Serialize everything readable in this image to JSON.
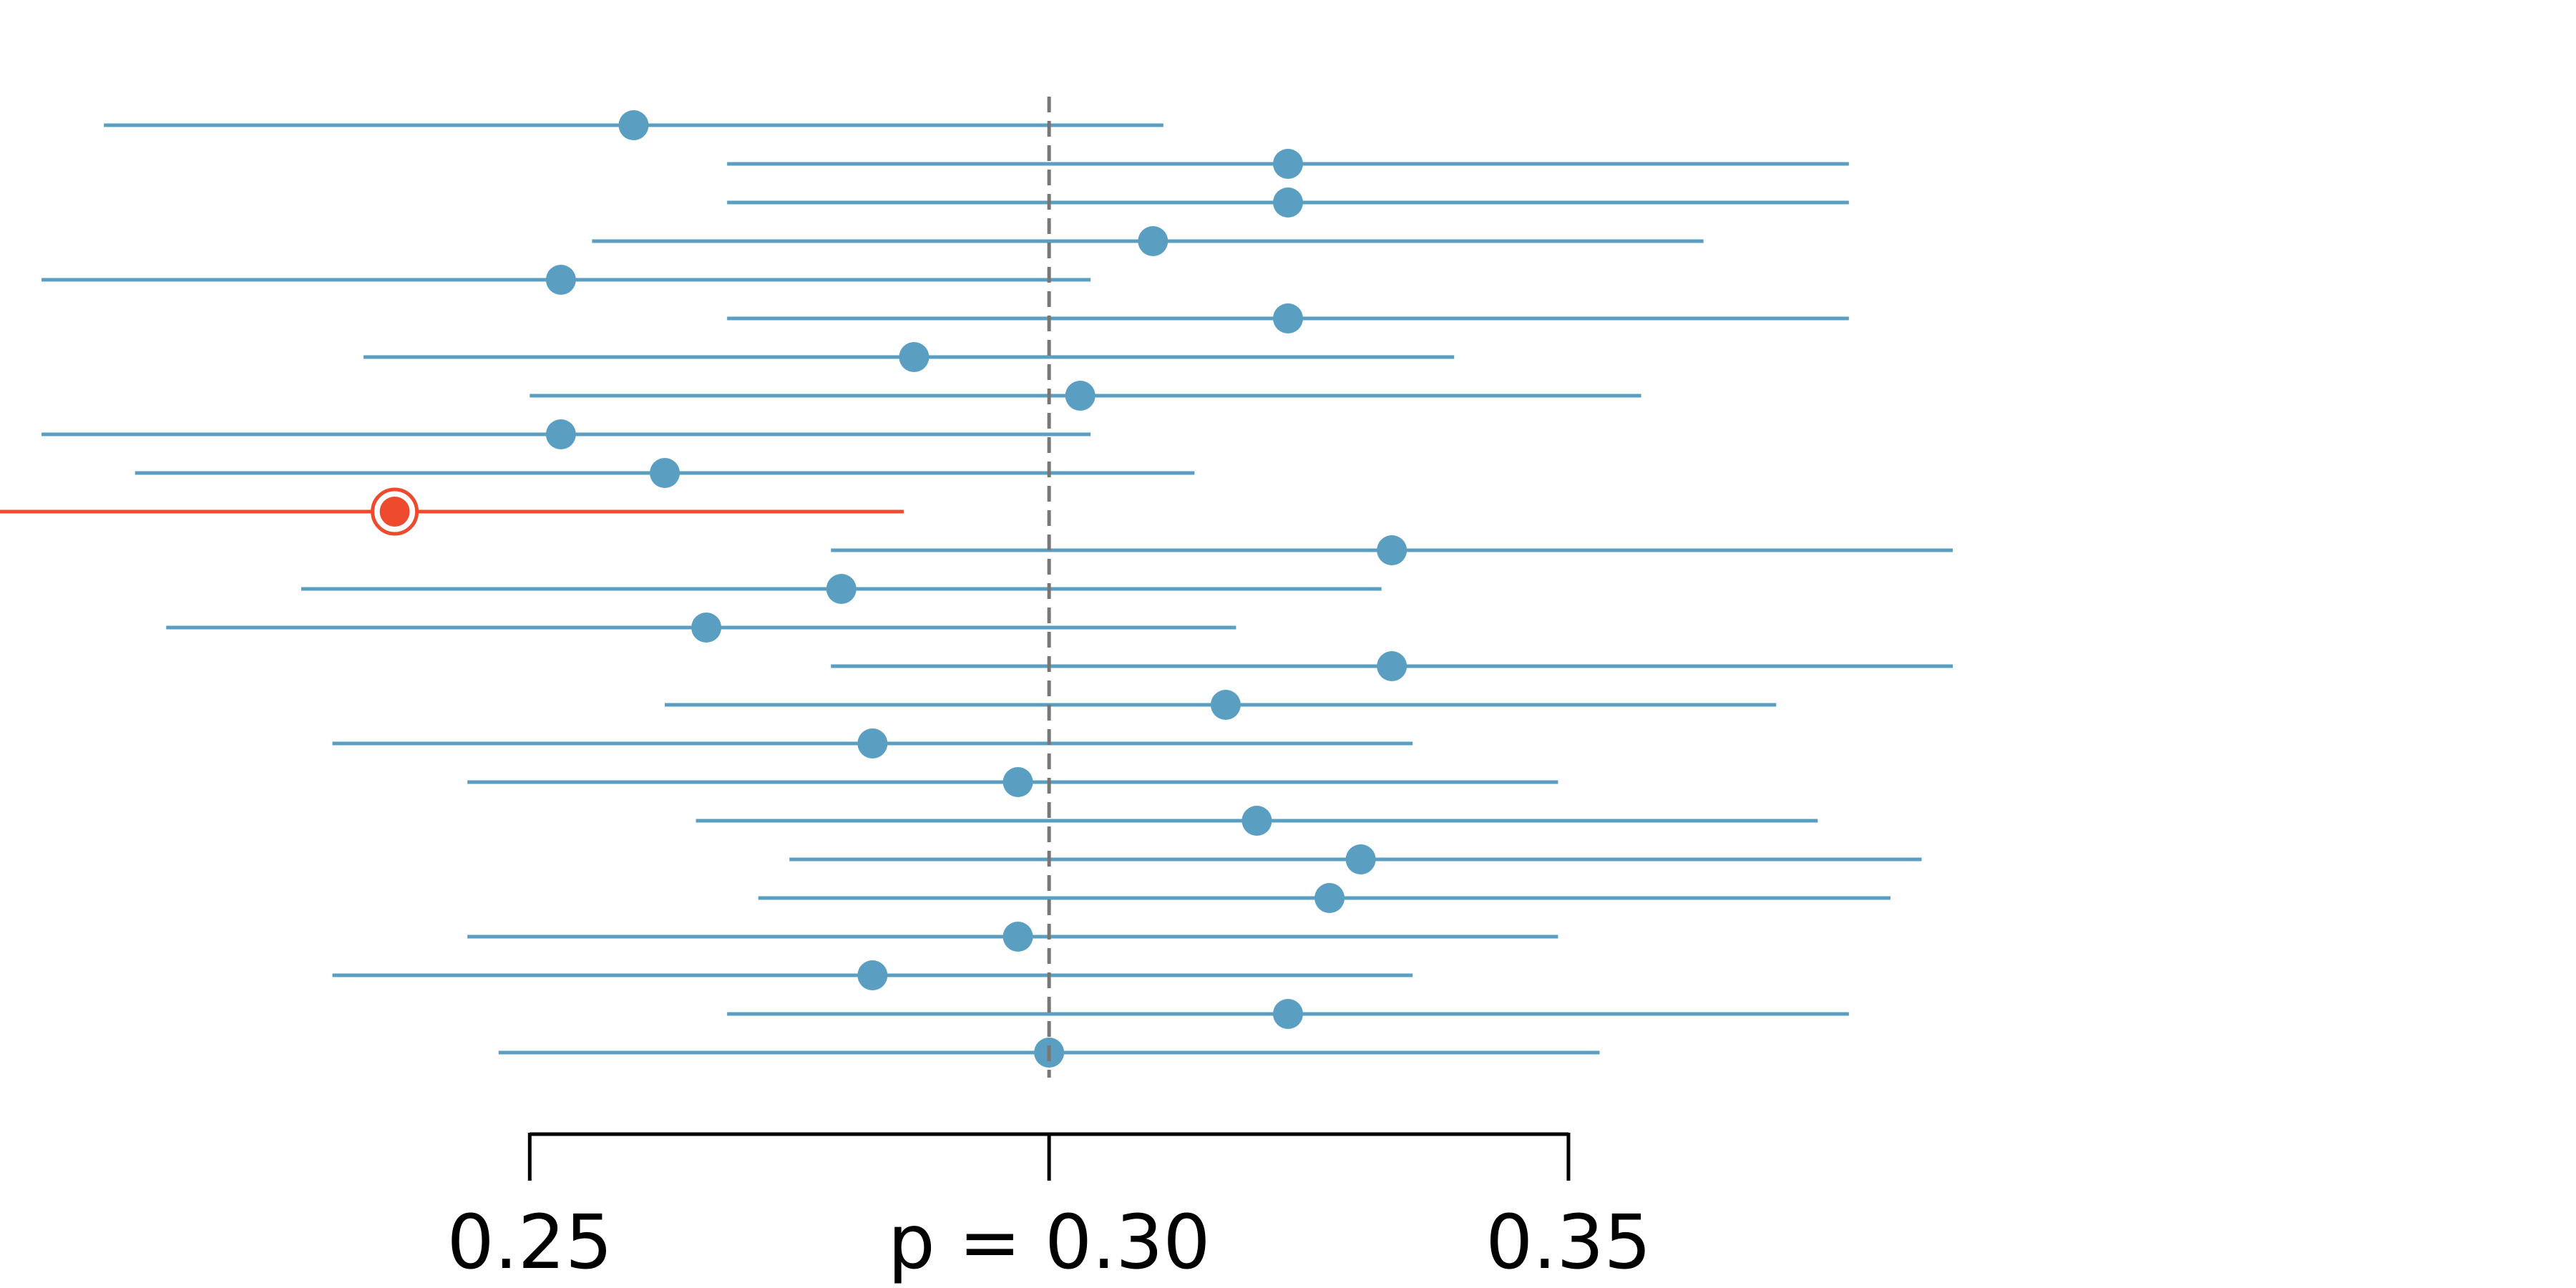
{
  "chart_data": {
    "type": "interval",
    "xlim": [
      0.199,
      0.447
    ],
    "reference_value": 0.3,
    "axis": {
      "ticks": [
        0.25,
        0.3,
        0.35
      ],
      "tick_labels": [
        "0.25",
        "p = 0.30",
        "0.35"
      ]
    },
    "grid": false,
    "colors": {
      "interval": "#5a9fc1",
      "highlight": "#ee4a2e",
      "reference_line": "#777777",
      "axis": "#000000"
    },
    "intervals": [
      {
        "estimate": 0.26,
        "lower": 0.209,
        "upper": 0.311,
        "highlight": false
      },
      {
        "estimate": 0.323,
        "lower": 0.269,
        "upper": 0.377,
        "highlight": false
      },
      {
        "estimate": 0.323,
        "lower": 0.269,
        "upper": 0.377,
        "highlight": false
      },
      {
        "estimate": 0.31,
        "lower": 0.256,
        "upper": 0.363,
        "highlight": false
      },
      {
        "estimate": 0.253,
        "lower": 0.203,
        "upper": 0.304,
        "highlight": false
      },
      {
        "estimate": 0.323,
        "lower": 0.269,
        "upper": 0.377,
        "highlight": false
      },
      {
        "estimate": 0.287,
        "lower": 0.234,
        "upper": 0.339,
        "highlight": false
      },
      {
        "estimate": 0.303,
        "lower": 0.25,
        "upper": 0.357,
        "highlight": false
      },
      {
        "estimate": 0.253,
        "lower": 0.203,
        "upper": 0.304,
        "highlight": false
      },
      {
        "estimate": 0.263,
        "lower": 0.212,
        "upper": 0.314,
        "highlight": false
      },
      {
        "estimate": 0.237,
        "lower": 0.188,
        "upper": 0.286,
        "highlight": true
      },
      {
        "estimate": 0.333,
        "lower": 0.279,
        "upper": 0.387,
        "highlight": false
      },
      {
        "estimate": 0.28,
        "lower": 0.228,
        "upper": 0.332,
        "highlight": false
      },
      {
        "estimate": 0.267,
        "lower": 0.215,
        "upper": 0.318,
        "highlight": false
      },
      {
        "estimate": 0.333,
        "lower": 0.279,
        "upper": 0.387,
        "highlight": false
      },
      {
        "estimate": 0.317,
        "lower": 0.263,
        "upper": 0.37,
        "highlight": false
      },
      {
        "estimate": 0.283,
        "lower": 0.231,
        "upper": 0.335,
        "highlight": false
      },
      {
        "estimate": 0.297,
        "lower": 0.244,
        "upper": 0.349,
        "highlight": false
      },
      {
        "estimate": 0.32,
        "lower": 0.266,
        "upper": 0.374,
        "highlight": false
      },
      {
        "estimate": 0.33,
        "lower": 0.275,
        "upper": 0.384,
        "highlight": false
      },
      {
        "estimate": 0.327,
        "lower": 0.272,
        "upper": 0.381,
        "highlight": false
      },
      {
        "estimate": 0.297,
        "lower": 0.244,
        "upper": 0.349,
        "highlight": false
      },
      {
        "estimate": 0.283,
        "lower": 0.231,
        "upper": 0.335,
        "highlight": false
      },
      {
        "estimate": 0.323,
        "lower": 0.269,
        "upper": 0.377,
        "highlight": false
      },
      {
        "estimate": 0.3,
        "lower": 0.247,
        "upper": 0.353,
        "highlight": false
      }
    ]
  }
}
